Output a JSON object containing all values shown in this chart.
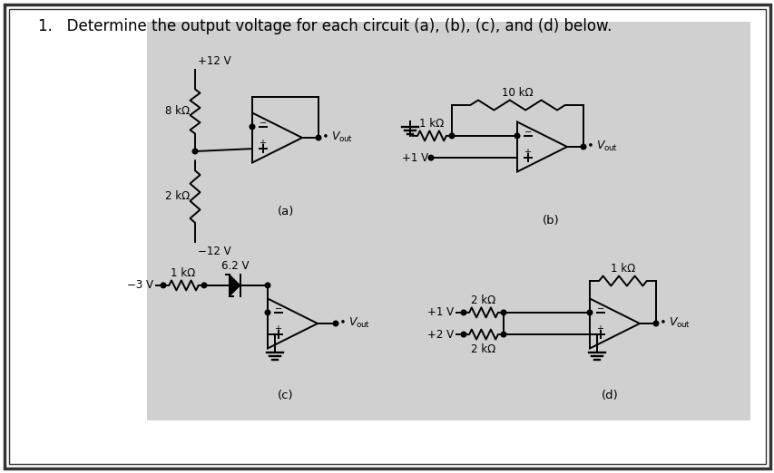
{
  "title": "1.   Determine the output voltage for each circuit (a), (b), (c), and (d) below.",
  "bg_outer": "#ffffff",
  "bg_circuit": "#d0d0d0",
  "lw": 1.4,
  "font_circuit": 8.5,
  "font_label": 9.5,
  "font_title": 12.0,
  "label_a": "(a)",
  "label_b": "(b)",
  "label_c": "(c)",
  "label_d": "(d)"
}
